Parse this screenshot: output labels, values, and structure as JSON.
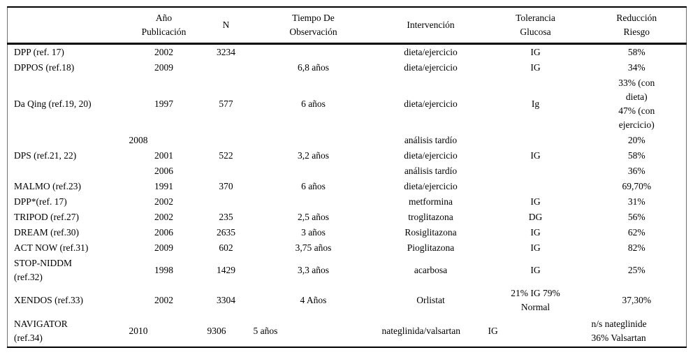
{
  "table": {
    "columns": [
      {
        "key": "study",
        "label": ""
      },
      {
        "key": "anio",
        "label": "Año\nPublicación"
      },
      {
        "key": "n",
        "label": "N"
      },
      {
        "key": "tiempo",
        "label": "Tiempo De\nObservación"
      },
      {
        "key": "intervencion",
        "label": "Intervención"
      },
      {
        "key": "tolerancia",
        "label": "Tolerancia\nGlucosa"
      },
      {
        "key": "reduccion",
        "label": "Reducción\nRiesgo"
      }
    ],
    "rows": [
      {
        "cells": [
          "DPP (ref. 17)",
          "2002",
          "3234",
          "",
          "dieta/ejercicio",
          "IG",
          "58%"
        ]
      },
      {
        "cells": [
          "DPPOS (ref.18)",
          "2009",
          "",
          "6,8 años",
          "dieta/ejercicio",
          "IG",
          "34%"
        ]
      },
      {
        "cells": [
          "Da Qing (ref.19, 20)",
          "1997",
          "577",
          "6 años",
          "dieta/ejercicio",
          "Ig",
          "33% (con\ndieta)\n47% (con\nejercicio)"
        ]
      },
      {
        "cells": [
          "DPS (ref.21, 22)",
          "2008",
          "",
          "",
          "análisis tardío",
          "",
          "20%"
        ],
        "rowspan_study": 3,
        "left_cells": [
          1
        ]
      },
      {
        "cells": [
          null,
          "2001",
          "522",
          "3,2 años",
          "dieta/ejercicio",
          "IG",
          "58%"
        ]
      },
      {
        "cells": [
          null,
          "2006",
          "",
          "",
          "análisis tardío",
          "",
          "36%"
        ]
      },
      {
        "cells": [
          "MALMO (ref.23)",
          "1991",
          "370",
          "6 años",
          "dieta/ejercicio",
          "",
          "69,70%"
        ]
      },
      {
        "cells": [
          "DPP*(ref. 17)",
          "2002",
          "",
          "",
          "metformina",
          "IG",
          "31%"
        ]
      },
      {
        "cells": [
          "TRIPOD (ref.27)",
          "2002",
          "235",
          "2,5 años",
          "troglitazona",
          "DG",
          "56%"
        ]
      },
      {
        "cells": [
          "DREAM (ref.30)",
          "2006",
          "2635",
          "3 años",
          "Rosiglitazona",
          "IG",
          "62%"
        ]
      },
      {
        "cells": [
          "ACT NOW (ref.31)",
          "2009",
          "602",
          "3,75 años",
          "Pioglitazona",
          "IG",
          "82%"
        ]
      },
      {
        "cells": [
          "STOP-NIDDM\n(ref.32)",
          "1998",
          "1429",
          "3,3 años",
          "acarbosa",
          "IG",
          "25%"
        ]
      },
      {
        "cells": [
          "XENDOS (ref.33)",
          "2002",
          "3304",
          "4 Años",
          "Orlistat",
          "21% IG 79%\nNormal",
          "37,30%"
        ],
        "tall": true
      },
      {
        "cells": [
          "NAVIGATOR\n(ref.34)",
          "2010",
          "9306",
          "5 años",
          "nateglinida/valsartan",
          "IG",
          "n/s nateglinide\n36% Valsartan"
        ],
        "left_cells": [
          1,
          2,
          3,
          4,
          5,
          6
        ],
        "tall": true
      }
    ]
  }
}
